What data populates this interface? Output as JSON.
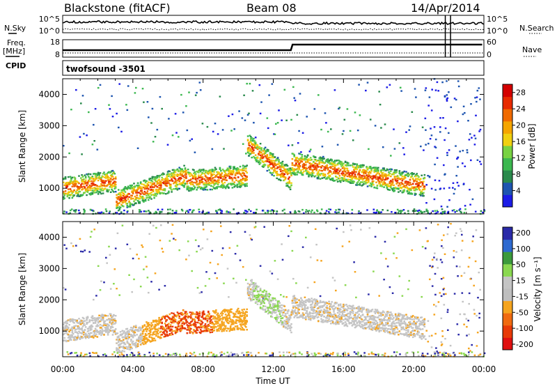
{
  "header": {
    "title": "Blackstone (fitACF)",
    "beam": "Beam 08",
    "date": "14/Apr/2014"
  },
  "side_labels": {
    "nsky": "N.Sky",
    "freq": "Freq.",
    "freq_unit": "[MHz]",
    "cpid": "CPID",
    "nsearch": "N.Search",
    "nave": "Nave",
    "nsky_ticks": [
      "10^5",
      "10^0"
    ],
    "nsearch_ticks": [
      "10^5",
      "10^0"
    ],
    "freq_ticks": [
      "18",
      "8"
    ],
    "nave_ticks": [
      "60",
      "0"
    ]
  },
  "cpid_value": "twofsound -3501",
  "colors": {
    "power_scale": [
      "#1c1ce6",
      "#1e55b0",
      "#2a8a4c",
      "#3cb850",
      "#78d242",
      "#f0d010",
      "#f5a500",
      "#f06a00",
      "#e82a00",
      "#d40000"
    ],
    "velocity_scale": [
      "#2a2aa8",
      "#2e6ad0",
      "#3c9a3c",
      "#8ad850",
      "#c4c4c4",
      "#bebebe",
      "#f5a41e",
      "#f06a10",
      "#e83a08",
      "#e01010"
    ]
  },
  "chart_data": [
    {
      "type": "heatmap",
      "panel": "power",
      "x_ticks": [
        "00:00",
        "04:00",
        "08:00",
        "12:00",
        "16:00",
        "20:00",
        "00:00"
      ],
      "x_range_hours": [
        0,
        24
      ],
      "ylabel": "Slant Range [km]",
      "y_ticks": [
        "1000",
        "2000",
        "3000",
        "4000"
      ],
      "y_tick_values": [
        1000,
        2000,
        3000,
        4000
      ],
      "ylim": [
        180,
        4500
      ],
      "colorbar_label": "Power [dB]",
      "colorbar_ticks": [
        "4",
        "8",
        "12",
        "16",
        "20",
        "24",
        "28"
      ],
      "colorbar_values": [
        4,
        8,
        12,
        16,
        20,
        24,
        28
      ],
      "colorbar_range": [
        0,
        30
      ]
    },
    {
      "type": "heatmap",
      "panel": "velocity",
      "x_ticks": [
        "00:00",
        "04:00",
        "08:00",
        "12:00",
        "16:00",
        "20:00",
        "00:00"
      ],
      "x_range_hours": [
        0,
        24
      ],
      "xlabel": "Time UT",
      "ylabel": "Slant Range [km]",
      "y_ticks": [
        "1000",
        "2000",
        "3000",
        "4000"
      ],
      "y_tick_values": [
        1000,
        2000,
        3000,
        4000
      ],
      "ylim": [
        180,
        4500
      ],
      "colorbar_label": "Velocity [m s⁻¹]",
      "colorbar_ticks": [
        "200",
        "100",
        "50",
        "15",
        "-15",
        "-50",
        "-100",
        "-200"
      ],
      "colorbar_values": [
        200,
        100,
        50,
        15,
        -15,
        -50,
        -100,
        -200
      ]
    }
  ]
}
